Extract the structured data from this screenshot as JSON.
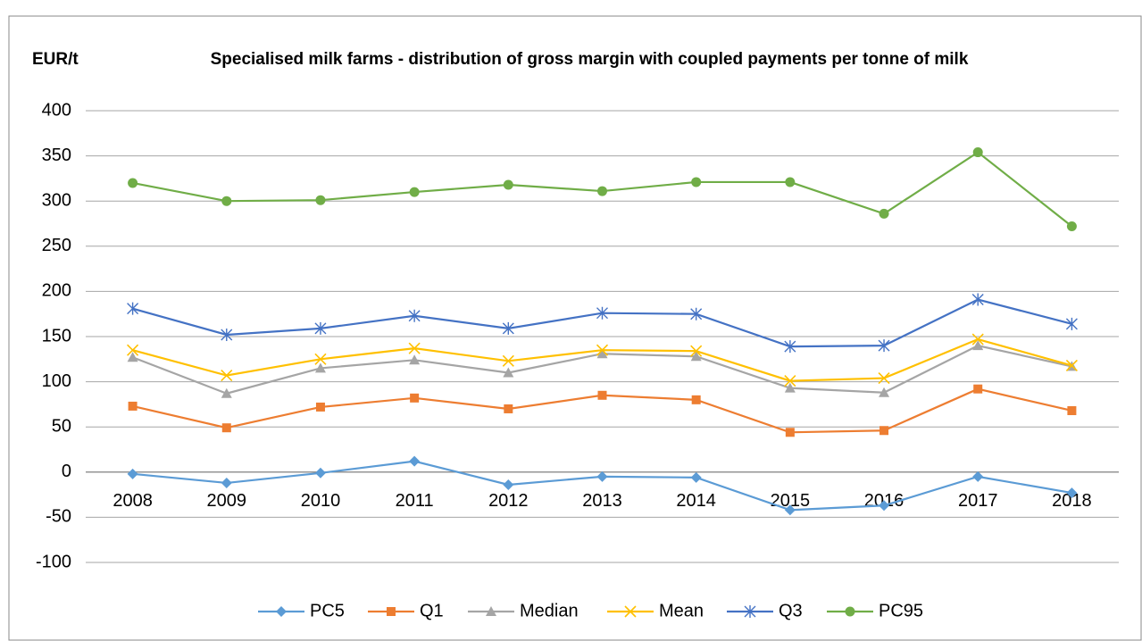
{
  "chart_data": {
    "type": "line",
    "title": "Specialised milk farms - distribution of gross margin with coupled payments per tonne of milk",
    "y_label": "EUR/t",
    "categories": [
      "2008",
      "2009",
      "2010",
      "2011",
      "2012",
      "2013",
      "2014",
      "2015",
      "2016",
      "2017",
      "2018"
    ],
    "series": [
      {
        "name": "PC5",
        "color": "#5b9bd5",
        "marker": "diamond",
        "values": [
          -2,
          -12,
          -1,
          12,
          -14,
          -5,
          -6,
          -42,
          -37,
          -5,
          -23
        ]
      },
      {
        "name": "Q1",
        "color": "#ed7d31",
        "marker": "square",
        "values": [
          73,
          49,
          72,
          82,
          70,
          85,
          80,
          44,
          46,
          92,
          68
        ]
      },
      {
        "name": "Median",
        "color": "#a5a5a5",
        "marker": "triangle",
        "values": [
          127,
          87,
          115,
          124,
          110,
          131,
          128,
          93,
          88,
          140,
          117
        ]
      },
      {
        "name": "Mean",
        "color": "#ffc000",
        "marker": "x",
        "values": [
          135,
          107,
          125,
          137,
          123,
          135,
          134,
          101,
          104,
          147,
          118
        ]
      },
      {
        "name": "Q3",
        "color": "#4472c4",
        "marker": "star",
        "values": [
          181,
          152,
          159,
          173,
          159,
          176,
          175,
          139,
          140,
          191,
          164
        ]
      },
      {
        "name": "PC95",
        "color": "#70ad47",
        "marker": "circle",
        "values": [
          320,
          300,
          301,
          310,
          318,
          311,
          321,
          321,
          286,
          354,
          272
        ]
      }
    ],
    "ylim": [
      -100,
      400
    ],
    "yticks": [
      -100,
      -50,
      0,
      50,
      100,
      150,
      200,
      250,
      300,
      350,
      400
    ],
    "grid": true,
    "legend": "bottom"
  }
}
